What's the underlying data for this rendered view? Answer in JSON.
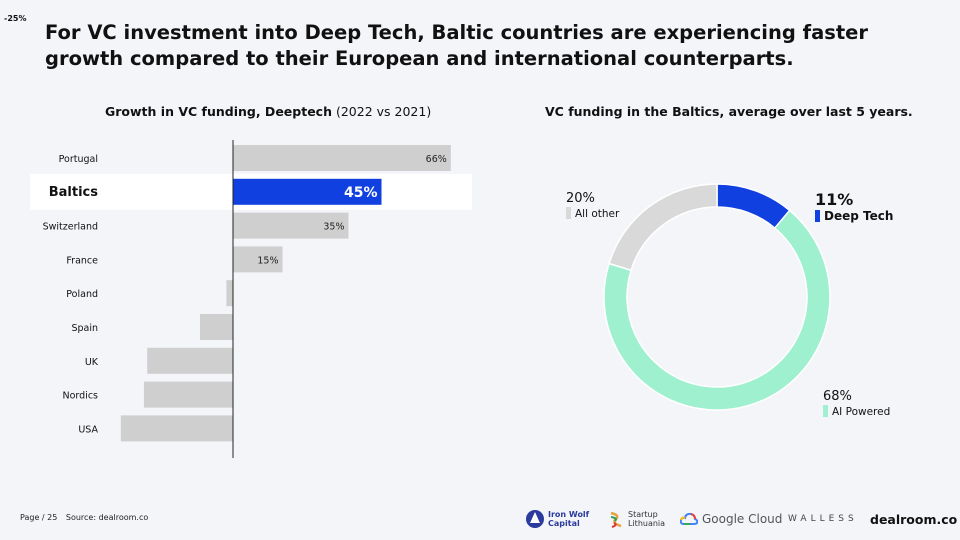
{
  "corner_label": "-25%",
  "headline": "For VC investment into Deep Tech, Baltic countries are experiencing faster growth compared to their European and international counterparts.",
  "bar_panel": {
    "title_bold": "Growth in VC funding, Deeptech",
    "title_rest": "(2022 vs 2021)"
  },
  "donut_panel": {
    "title": "VC funding in the Baltics, average over last 5 years."
  },
  "chart_data": [
    {
      "type": "bar",
      "orientation": "horizontal",
      "title": "Growth in VC funding, Deeptech (2022 vs 2021)",
      "categories": [
        "Portugal",
        "Baltics",
        "Switzerland",
        "France",
        "Poland",
        "Spain",
        "UK",
        "Nordics",
        "USA"
      ],
      "values": [
        66,
        45,
        35,
        15,
        -2,
        -10,
        -26,
        -27,
        -34
      ],
      "value_labels": [
        "66%",
        "45%",
        "35%",
        "15%",
        "",
        "",
        "",
        "",
        ""
      ],
      "highlight": "Baltics",
      "units": "%",
      "colors": {
        "default": "#cfcfcf",
        "highlight": "#1140e0"
      }
    },
    {
      "type": "pie",
      "style": "donut",
      "title": "VC funding in the Baltics, average over last 5 years.",
      "slices": [
        {
          "name": "Deep Tech",
          "value": 11,
          "label": "11%",
          "color": "#1140e0"
        },
        {
          "name": "AI Powered",
          "value": 68,
          "label": "68%",
          "color": "#9ff0cf"
        },
        {
          "name": "All other",
          "value": 20,
          "label": "20%",
          "color": "#d9d9d9"
        }
      ]
    }
  ],
  "footer": {
    "page": "Page / 25",
    "source": "Source: dealroom.co"
  },
  "logos": {
    "ironwolf": "Iron Wolf Capital",
    "ironwolf_line1": "Iron Wolf",
    "ironwolf_line2": "Capital",
    "startup_line1": "Startup",
    "startup_line2": "Lithuania",
    "google": "Google Cloud",
    "walless": "WALLESS",
    "dealroom": "dealroom.co"
  }
}
